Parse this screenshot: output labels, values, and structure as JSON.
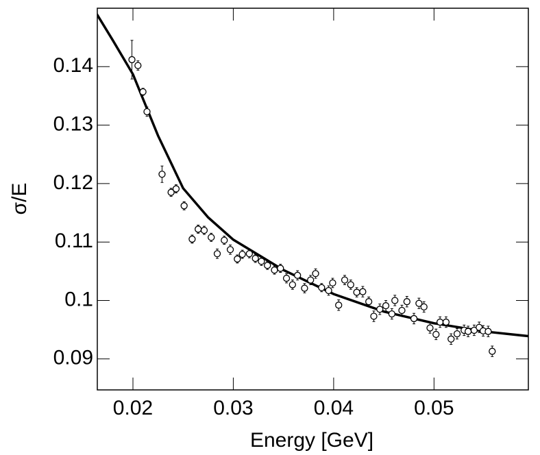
{
  "chart_data": {
    "type": "scatter",
    "xlabel": "Energy [GeV]",
    "ylabel": "σ/E",
    "xlim": [
      0.01645,
      0.0594
    ],
    "ylim": [
      0.0847,
      0.15
    ],
    "xticks": [
      0.02,
      0.03,
      0.04,
      0.05
    ],
    "yticks": [
      0.09,
      0.1,
      0.11,
      0.12,
      0.13,
      0.14
    ],
    "color": "#000000",
    "points": {
      "x": [
        0.0199,
        0.0205,
        0.021,
        0.0214,
        0.0229,
        0.0238,
        0.0243,
        0.0251,
        0.0259,
        0.0265,
        0.0271,
        0.0278,
        0.0284,
        0.0291,
        0.0297,
        0.0304,
        0.0309,
        0.0316,
        0.0322,
        0.0328,
        0.0334,
        0.0341,
        0.0347,
        0.0353,
        0.0359,
        0.0364,
        0.0371,
        0.0377,
        0.0382,
        0.0388,
        0.0395,
        0.0399,
        0.0405,
        0.0411,
        0.0417,
        0.0423,
        0.0429,
        0.0435,
        0.044,
        0.0446,
        0.0452,
        0.0458,
        0.0461,
        0.0468,
        0.0473,
        0.048,
        0.0485,
        0.049,
        0.0496,
        0.0502,
        0.0506,
        0.0512,
        0.0517,
        0.0523,
        0.053,
        0.0534,
        0.054,
        0.0545,
        0.0549,
        0.0554,
        0.0558
      ],
      "values": [
        0.1412,
        0.1402,
        0.1357,
        0.1323,
        0.1216,
        0.1185,
        0.1191,
        0.1162,
        0.1105,
        0.1122,
        0.112,
        0.1108,
        0.108,
        0.1103,
        0.1087,
        0.1071,
        0.1079,
        0.108,
        0.1072,
        0.1067,
        0.106,
        0.1052,
        0.1055,
        0.1038,
        0.1027,
        0.1043,
        0.1021,
        0.1035,
        0.1046,
        0.1022,
        0.1017,
        0.103,
        0.0992,
        0.1035,
        0.1027,
        0.1014,
        0.1015,
        0.0998,
        0.0973,
        0.0985,
        0.0991,
        0.0977,
        0.1,
        0.0983,
        0.0998,
        0.0969,
        0.0995,
        0.0989,
        0.0953,
        0.0942,
        0.0963,
        0.0963,
        0.0934,
        0.0943,
        0.0949,
        0.0947,
        0.0949,
        0.0954,
        0.0948,
        0.0947,
        0.0913
      ],
      "errors": [
        0.0033,
        0.0008,
        0.0006,
        0.0008,
        0.0014,
        0.0007,
        0.0007,
        0.0007,
        0.0007,
        0.0007,
        0.0007,
        0.0007,
        0.0008,
        0.0007,
        0.0008,
        0.0007,
        0.0007,
        0.0007,
        0.0007,
        0.0007,
        0.0007,
        0.0007,
        0.0007,
        0.0008,
        0.0008,
        0.0008,
        0.0008,
        0.0008,
        0.0008,
        0.0007,
        0.0008,
        0.0008,
        0.0009,
        0.0008,
        0.0008,
        0.0008,
        0.0009,
        0.0008,
        0.0009,
        0.0009,
        0.0009,
        0.0009,
        0.0009,
        0.0009,
        0.0009,
        0.0009,
        0.0009,
        0.0009,
        0.0009,
        0.0009,
        0.0009,
        0.0009,
        0.0009,
        0.0009,
        0.0009,
        0.0009,
        0.0009,
        0.0009,
        0.0009,
        0.0009,
        0.0009
      ]
    },
    "fit": {
      "x": [
        0.0164,
        0.018,
        0.02,
        0.0225,
        0.025,
        0.0275,
        0.03,
        0.035,
        0.04,
        0.045,
        0.05,
        0.055,
        0.0594
      ],
      "values": [
        0.149,
        0.1445,
        0.1387,
        0.1282,
        0.1192,
        0.1142,
        0.1104,
        0.1052,
        0.1011,
        0.0981,
        0.0961,
        0.0947,
        0.0939
      ]
    }
  }
}
